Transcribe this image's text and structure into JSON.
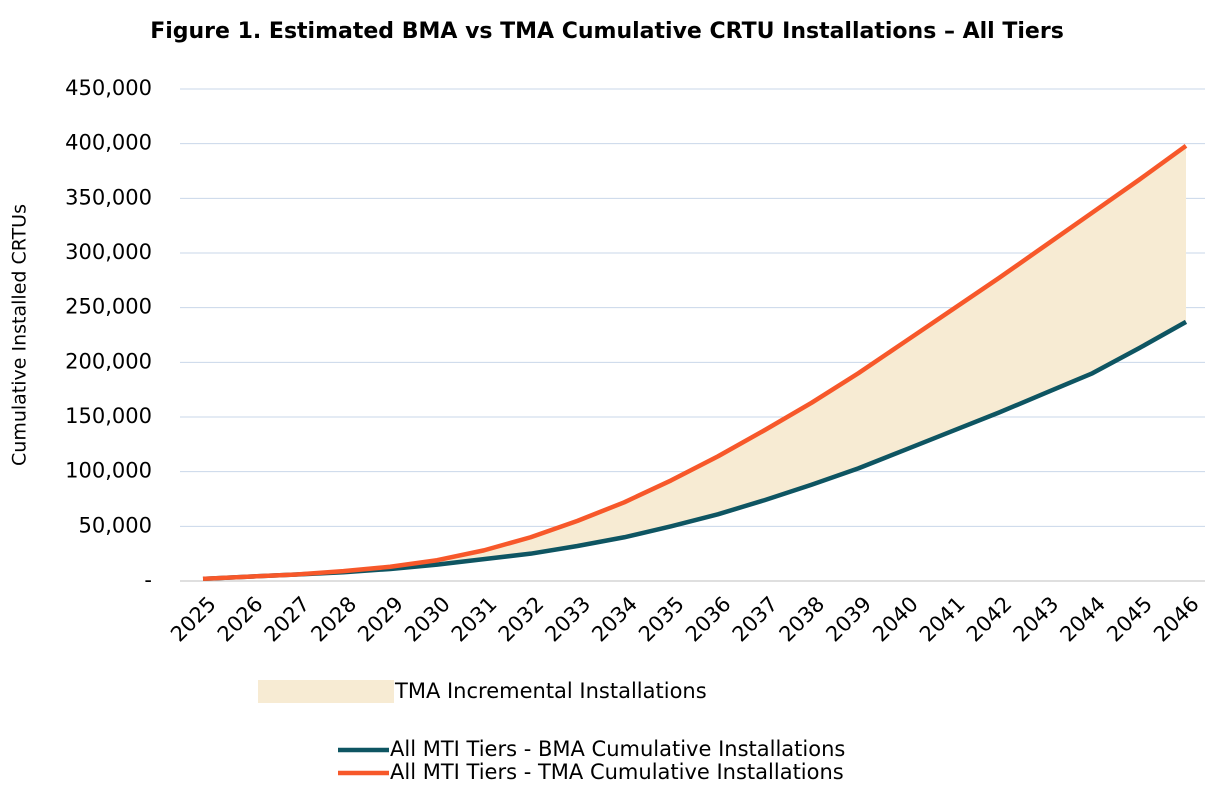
{
  "chart_data": {
    "type": "line",
    "title": "Figure 1. Estimated BMA vs TMA Cumulative CRTU Installations – All Tiers",
    "y_label": "Cumulative Installed CRTUs",
    "categories": [
      "2025",
      "2026",
      "2027",
      "2028",
      "2029",
      "2030",
      "2031",
      "2032",
      "2033",
      "2034",
      "2035",
      "2036",
      "2037",
      "2038",
      "2039",
      "2040",
      "2041",
      "2042",
      "2043",
      "2044",
      "2045",
      "2046"
    ],
    "series": [
      {
        "name": "All MTI Tiers - BMA Cumulative Installations",
        "color": "#0e5562",
        "values": [
          2000,
          4000,
          6000,
          8000,
          11000,
          15000,
          20000,
          25000,
          32000,
          40000,
          50000,
          61000,
          74000,
          88000,
          103000,
          120000,
          137000,
          154000,
          172000,
          190000,
          213000,
          237000
        ]
      },
      {
        "name": "All MTI Tiers - TMA Cumulative Installations",
        "color": "#f7582a",
        "values": [
          2000,
          4000,
          6000,
          9000,
          13000,
          19000,
          28000,
          40000,
          55000,
          72000,
          92000,
          114000,
          138000,
          163000,
          190000,
          219000,
          248000,
          277000,
          307000,
          337000,
          367000,
          398000
        ]
      }
    ],
    "fill_between": {
      "name": "TMA Incremental Installations",
      "color": "#f7ebd3"
    },
    "ylim": [
      0,
      450000
    ],
    "yticks": [
      {
        "value": 0,
        "label": "-"
      },
      {
        "value": 50000,
        "label": "50,000"
      },
      {
        "value": 100000,
        "label": "100,000"
      },
      {
        "value": 150000,
        "label": "150,000"
      },
      {
        "value": 200000,
        "label": "200,000"
      },
      {
        "value": 250000,
        "label": "250,000"
      },
      {
        "value": 300000,
        "label": "300,000"
      },
      {
        "value": 350000,
        "label": "350,000"
      },
      {
        "value": 400000,
        "label": "400,000"
      },
      {
        "value": 450000,
        "label": "450,000"
      }
    ],
    "grid": true
  }
}
